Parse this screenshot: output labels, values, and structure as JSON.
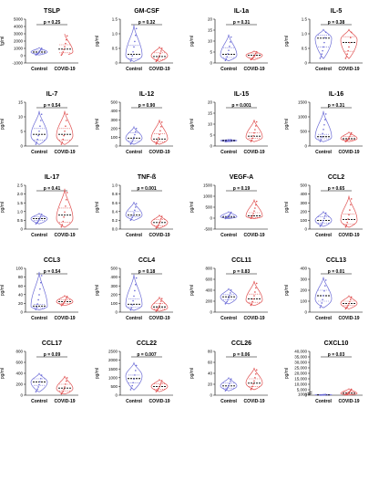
{
  "colors": {
    "control": "#6b6bd6",
    "covid": "#e05050",
    "median": "#000000",
    "axis": "#000000"
  },
  "group_labels": [
    "Control",
    "COVID-19"
  ],
  "chart_data": [
    {
      "type": "violin",
      "title": "TSLP",
      "ylabel": "fg/ml",
      "p": "p = 0.25",
      "ylim": [
        -1000,
        5000
      ],
      "yticks": [
        -1000,
        0,
        1000,
        2000,
        3000,
        4000,
        5000
      ],
      "yticklabels": [
        "-1000",
        "0",
        "1000",
        "2000",
        "3000",
        "4000",
        "5000"
      ],
      "series": [
        {
          "name": "Control",
          "median": 500,
          "q1": 300,
          "q3": 750,
          "min": 100,
          "max": 1100,
          "wide": 500
        },
        {
          "name": "COVID-19",
          "median": 900,
          "q1": 400,
          "q3": 1500,
          "min": 50,
          "max": 3000,
          "wide": 500
        }
      ]
    },
    {
      "type": "violin",
      "title": "GM-CSF",
      "ylabel": "pg/ml",
      "p": "p = 0.32",
      "ylim": [
        0,
        1.5
      ],
      "yticks": [
        0,
        0.5,
        1.0,
        1.5
      ],
      "yticklabels": [
        "0",
        "0.5",
        "1.0",
        "1.5"
      ],
      "series": [
        {
          "name": "Control",
          "median": 0.3,
          "q1": 0.15,
          "q3": 0.6,
          "min": 0.05,
          "max": 1.3,
          "wide": 0.25
        },
        {
          "name": "COVID-19",
          "median": 0.22,
          "q1": 0.12,
          "q3": 0.35,
          "min": 0.05,
          "max": 0.55,
          "wide": 0.25
        }
      ]
    },
    {
      "type": "violin",
      "title": "IL-1a",
      "ylabel": "pg/ml",
      "p": "p = 0.31",
      "ylim": [
        0,
        20
      ],
      "yticks": [
        0,
        5,
        10,
        15,
        20
      ],
      "yticklabels": [
        "0",
        "5",
        "10",
        "15",
        "20"
      ],
      "series": [
        {
          "name": "Control",
          "median": 4,
          "q1": 2.5,
          "q3": 7,
          "min": 1,
          "max": 13,
          "wide": 3.5
        },
        {
          "name": "COVID-19",
          "median": 3.5,
          "q1": 2.5,
          "q3": 4.5,
          "min": 1.5,
          "max": 5.5,
          "wide": 3.5
        }
      ]
    },
    {
      "type": "violin",
      "title": "IL-5",
      "ylabel": "pg/ml",
      "p": "p = 0.38",
      "ylim": [
        0,
        1.5
      ],
      "yticks": [
        0,
        0.5,
        1.0,
        1.5
      ],
      "yticklabels": [
        "0",
        "0.5",
        "1.0",
        "1.5"
      ],
      "series": [
        {
          "name": "Control",
          "median": 0.85,
          "q1": 0.55,
          "q3": 0.95,
          "min": 0.15,
          "max": 1.15,
          "wide": 0.85
        },
        {
          "name": "COVID-19",
          "median": 0.7,
          "q1": 0.4,
          "q3": 0.9,
          "min": 0.15,
          "max": 1.15,
          "wide": 0.8
        }
      ]
    },
    {
      "type": "violin",
      "title": "IL-7",
      "ylabel": "pg/ml",
      "p": "p = 0.54",
      "ylim": [
        0,
        15
      ],
      "yticks": [
        0,
        5,
        10,
        15
      ],
      "yticklabels": [
        "0",
        "5",
        "10",
        "15"
      ],
      "series": [
        {
          "name": "Control",
          "median": 4,
          "q1": 2,
          "q3": 6,
          "min": 0.5,
          "max": 12,
          "wide": 3.5
        },
        {
          "name": "COVID-19",
          "median": 4,
          "q1": 2,
          "q3": 6,
          "min": 0.5,
          "max": 12,
          "wide": 3.5
        }
      ]
    },
    {
      "type": "violin",
      "title": "IL-12",
      "ylabel": "pg/ml",
      "p": "p = 0.90",
      "ylim": [
        0,
        500
      ],
      "yticks": [
        0,
        100,
        200,
        300,
        400,
        500
      ],
      "yticklabels": [
        "0",
        "100",
        "200",
        "300",
        "400",
        "500"
      ],
      "series": [
        {
          "name": "Control",
          "median": 90,
          "q1": 60,
          "q3": 150,
          "min": 20,
          "max": 220,
          "wide": 90
        },
        {
          "name": "COVID-19",
          "median": 80,
          "q1": 50,
          "q3": 140,
          "min": 20,
          "max": 300,
          "wide": 80
        }
      ]
    },
    {
      "type": "violin",
      "title": "IL-15",
      "ylabel": "pg/ml",
      "p": "p = 0.001",
      "ylim": [
        0,
        20
      ],
      "yticks": [
        0,
        5,
        10,
        15,
        20
      ],
      "yticklabels": [
        "0",
        "5",
        "10",
        "15",
        "20"
      ],
      "series": [
        {
          "name": "Control",
          "median": 2.5,
          "q1": 2.2,
          "q3": 2.8,
          "min": 2,
          "max": 3,
          "wide": 2.5
        },
        {
          "name": "COVID-19",
          "median": 4.5,
          "q1": 3.5,
          "q3": 6,
          "min": 2,
          "max": 12,
          "wide": 4
        }
      ]
    },
    {
      "type": "violin",
      "title": "IL-16",
      "ylabel": "pg/ml",
      "p": "p = 0.31",
      "ylim": [
        0,
        1500
      ],
      "yticks": [
        0,
        500,
        1000,
        1500
      ],
      "yticklabels": [
        "0",
        "500",
        "1000",
        "1500"
      ],
      "series": [
        {
          "name": "Control",
          "median": 320,
          "q1": 250,
          "q3": 400,
          "min": 150,
          "max": 1200,
          "wide": 300
        },
        {
          "name": "COVID-19",
          "median": 250,
          "q1": 200,
          "q3": 330,
          "min": 150,
          "max": 480,
          "wide": 260
        }
      ]
    },
    {
      "type": "violin",
      "title": "IL-17",
      "ylabel": "pg/ml",
      "p": "p = 0.41",
      "ylim": [
        0,
        2.5
      ],
      "yticks": [
        0,
        0.5,
        1.0,
        1.5,
        2.0,
        2.5
      ],
      "yticklabels": [
        "0",
        "0.5",
        "1.0",
        "1.5",
        "2.0",
        "2.5"
      ],
      "series": [
        {
          "name": "Control",
          "median": 0.6,
          "q1": 0.5,
          "q3": 0.7,
          "min": 0.3,
          "max": 0.9,
          "wide": 0.6
        },
        {
          "name": "COVID-19",
          "median": 0.8,
          "q1": 0.4,
          "q3": 1.2,
          "min": 0.1,
          "max": 2.3,
          "wide": 0.6
        }
      ]
    },
    {
      "type": "violin",
      "title": "TNF-ß",
      "ylabel": "pg/ml",
      "p": "p = 0.001",
      "ylim": [
        0,
        1.0
      ],
      "yticks": [
        0,
        0.2,
        0.4,
        0.6,
        0.8,
        1.0
      ],
      "yticklabels": [
        "0.0",
        "0.2",
        "0.4",
        "0.6",
        "0.8",
        "1.0"
      ],
      "series": [
        {
          "name": "Control",
          "median": 0.32,
          "q1": 0.28,
          "q3": 0.4,
          "min": 0.2,
          "max": 0.62,
          "wide": 0.32
        },
        {
          "name": "COVID-19",
          "median": 0.15,
          "q1": 0.08,
          "q3": 0.22,
          "min": 0.02,
          "max": 0.32,
          "wide": 0.15
        }
      ]
    },
    {
      "type": "violin",
      "title": "VEGF-A",
      "ylabel": "pg/ml",
      "p": "p = 0.19",
      "ylim": [
        -500,
        1500
      ],
      "yticks": [
        -500,
        0,
        500,
        1000,
        1500
      ],
      "yticklabels": [
        "-500",
        "0",
        "500",
        "1000",
        "1500"
      ],
      "series": [
        {
          "name": "Control",
          "median": 50,
          "q1": 20,
          "q3": 100,
          "min": -20,
          "max": 300,
          "wide": 60
        },
        {
          "name": "COVID-19",
          "median": 100,
          "q1": 30,
          "q3": 250,
          "min": -20,
          "max": 850,
          "wide": 80
        }
      ]
    },
    {
      "type": "violin",
      "title": "CCL2",
      "ylabel": "pg/ml",
      "p": "p = 0.65",
      "ylim": [
        0,
        500
      ],
      "yticks": [
        0,
        100,
        200,
        300,
        400,
        500
      ],
      "yticklabels": [
        "0",
        "100",
        "200",
        "300",
        "400",
        "500"
      ],
      "series": [
        {
          "name": "Control",
          "median": 100,
          "q1": 70,
          "q3": 140,
          "min": 30,
          "max": 200,
          "wide": 100
        },
        {
          "name": "COVID-19",
          "median": 110,
          "q1": 60,
          "q3": 170,
          "min": 20,
          "max": 380,
          "wide": 100
        }
      ]
    },
    {
      "type": "violin",
      "title": "CCL3",
      "ylabel": "pg/ml",
      "p": "p = 0.54",
      "ylim": [
        0,
        100
      ],
      "yticks": [
        0,
        20,
        40,
        60,
        80,
        100
      ],
      "yticklabels": [
        "0",
        "20",
        "40",
        "60",
        "80",
        "100"
      ],
      "series": [
        {
          "name": "Control",
          "median": 14,
          "q1": 10,
          "q3": 18,
          "min": 5,
          "max": 92,
          "wide": 13
        },
        {
          "name": "COVID-19",
          "median": 24,
          "q1": 20,
          "q3": 28,
          "min": 15,
          "max": 38,
          "wide": 24
        }
      ]
    },
    {
      "type": "violin",
      "title": "CCL4",
      "ylabel": "pg/ml",
      "p": "p = 0.18",
      "ylim": [
        0,
        500
      ],
      "yticks": [
        0,
        100,
        200,
        300,
        400,
        500
      ],
      "yticklabels": [
        "0",
        "100",
        "200",
        "300",
        "400",
        "500"
      ],
      "series": [
        {
          "name": "Control",
          "median": 90,
          "q1": 60,
          "q3": 150,
          "min": 20,
          "max": 430,
          "wide": 80
        },
        {
          "name": "COVID-19",
          "median": 60,
          "q1": 40,
          "q3": 100,
          "min": 10,
          "max": 170,
          "wide": 50
        }
      ]
    },
    {
      "type": "violin",
      "title": "CCL11",
      "ylabel": "pg/ml",
      "p": "p = 0.83",
      "ylim": [
        0,
        800
      ],
      "yticks": [
        0,
        200,
        400,
        600,
        800
      ],
      "yticklabels": [
        "0",
        "200",
        "400",
        "600",
        "800"
      ],
      "series": [
        {
          "name": "Control",
          "median": 280,
          "q1": 230,
          "q3": 320,
          "min": 150,
          "max": 430,
          "wide": 280
        },
        {
          "name": "COVID-19",
          "median": 240,
          "q1": 180,
          "q3": 330,
          "min": 120,
          "max": 570,
          "wide": 220
        }
      ]
    },
    {
      "type": "violin",
      "title": "CCL13",
      "ylabel": "pg/ml",
      "p": "p = 0.01",
      "ylim": [
        0,
        400
      ],
      "yticks": [
        0,
        100,
        200,
        300,
        400
      ],
      "yticklabels": [
        "0",
        "100",
        "200",
        "300",
        "400"
      ],
      "series": [
        {
          "name": "Control",
          "median": 150,
          "q1": 100,
          "q3": 200,
          "min": 40,
          "max": 320,
          "wide": 120
        },
        {
          "name": "COVID-19",
          "median": 80,
          "q1": 60,
          "q3": 100,
          "min": 30,
          "max": 150,
          "wide": 80
        }
      ]
    },
    {
      "type": "violin",
      "title": "CCL17",
      "ylabel": "pg/ml",
      "p": "p = 0.09",
      "ylim": [
        0,
        800
      ],
      "yticks": [
        0,
        200,
        400,
        600,
        800
      ],
      "yticklabels": [
        "0",
        "200",
        "400",
        "600",
        "800"
      ],
      "series": [
        {
          "name": "Control",
          "median": 240,
          "q1": 180,
          "q3": 300,
          "min": 60,
          "max": 400,
          "wide": 240
        },
        {
          "name": "COVID-19",
          "median": 130,
          "q1": 80,
          "q3": 200,
          "min": 20,
          "max": 350,
          "wide": 120
        }
      ]
    },
    {
      "type": "violin",
      "title": "CCL22",
      "ylabel": "pg/ml",
      "p": "p = 0.007",
      "ylim": [
        0,
        2500
      ],
      "yticks": [
        0,
        500,
        1000,
        1500,
        2000,
        2500
      ],
      "yticklabels": [
        "0",
        "500",
        "1000",
        "1500",
        "2000",
        "2500"
      ],
      "series": [
        {
          "name": "Control",
          "median": 950,
          "q1": 700,
          "q3": 1150,
          "min": 300,
          "max": 1850,
          "wide": 1100
        },
        {
          "name": "COVID-19",
          "median": 500,
          "q1": 350,
          "q3": 650,
          "min": 200,
          "max": 900,
          "wide": 500
        }
      ]
    },
    {
      "type": "violin",
      "title": "CCL26",
      "ylabel": "pg/ml",
      "p": "p = 0.06",
      "ylim": [
        0,
        80
      ],
      "yticks": [
        0,
        20,
        40,
        60,
        80
      ],
      "yticklabels": [
        "0",
        "20",
        "40",
        "60",
        "80"
      ],
      "series": [
        {
          "name": "Control",
          "median": 17,
          "q1": 13,
          "q3": 22,
          "min": 8,
          "max": 32,
          "wide": 17
        },
        {
          "name": "COVID-19",
          "median": 22,
          "q1": 16,
          "q3": 30,
          "min": 10,
          "max": 50,
          "wide": 22
        }
      ]
    },
    {
      "type": "violin",
      "title": "CXCL10",
      "ylabel": "pg/ml",
      "p": "p = 0.03",
      "broken_axis": true,
      "ylim": [
        0,
        40000
      ],
      "yticks": [
        0,
        1000,
        5000,
        10000,
        15000,
        20000,
        25000,
        30000,
        35000,
        40000
      ],
      "yticklabels": [
        "0",
        "1000",
        "5,000",
        "10,000",
        "15,000",
        "20,000",
        "25,000",
        "30,000",
        "35,000",
        "40,000"
      ],
      "series": [
        {
          "name": "Control",
          "median": 300,
          "q1": 200,
          "q3": 450,
          "min": 100,
          "max": 700,
          "wide": 300
        },
        {
          "name": "COVID-19",
          "median": 1800,
          "q1": 1000,
          "q3": 3000,
          "min": 200,
          "max": 6000,
          "wide": 1500
        }
      ]
    }
  ]
}
